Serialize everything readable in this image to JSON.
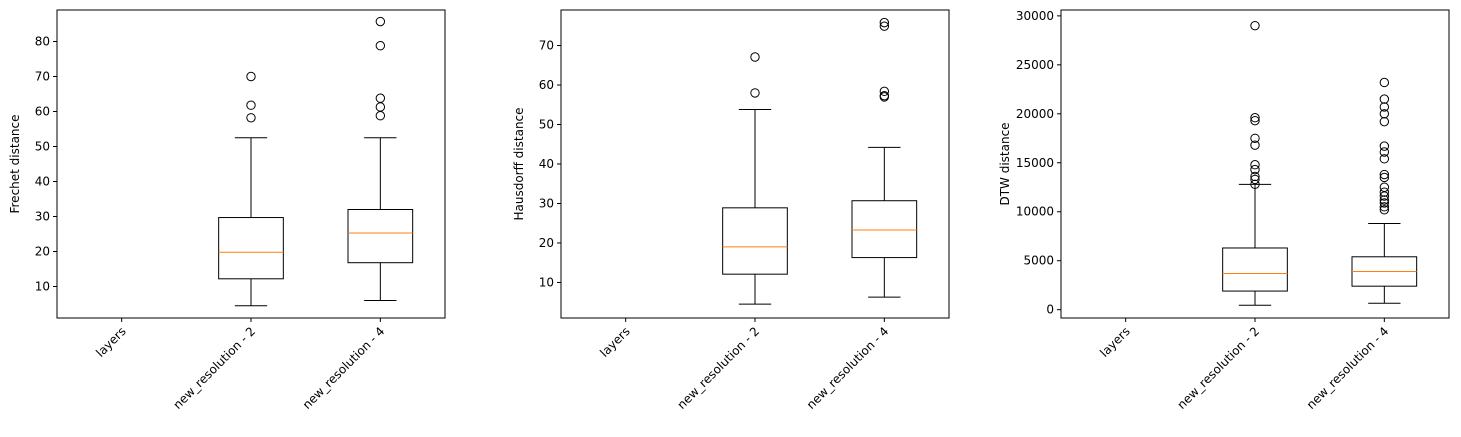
{
  "colors": {
    "box": "#000000",
    "median": "#ff7f0e",
    "outlier": "#000000",
    "background": "#ffffff"
  },
  "chart_data": [
    {
      "type": "boxplot",
      "ylabel": "Frechet distance",
      "categories": [
        "layers",
        "new_resolution - 2",
        "new_resolution - 4"
      ],
      "ylim": [
        1,
        89
      ],
      "yticks": [
        10,
        20,
        30,
        40,
        50,
        60,
        70,
        80
      ],
      "boxes": [
        null,
        {
          "whislo": 4.5,
          "q1": 12.2,
          "med": 19.8,
          "q3": 29.7,
          "whishi": 52.5,
          "fliers": [
            58.2,
            61.8,
            70.0
          ]
        },
        {
          "whislo": 6.0,
          "q1": 16.8,
          "med": 25.3,
          "q3": 32.0,
          "whishi": 52.5,
          "fliers": [
            58.8,
            61.3,
            63.8,
            78.8,
            85.7
          ]
        }
      ]
    },
    {
      "type": "boxplot",
      "ylabel": "Hausdorff distance",
      "categories": [
        "layers",
        "new_resolution - 2",
        "new_resolution - 4"
      ],
      "ylim": [
        1,
        79
      ],
      "yticks": [
        10,
        20,
        30,
        40,
        50,
        60,
        70
      ],
      "boxes": [
        null,
        {
          "whislo": 4.5,
          "q1": 12.1,
          "med": 19.0,
          "q3": 28.9,
          "whishi": 53.8,
          "fliers": [
            58.0,
            67.1
          ]
        },
        {
          "whislo": 6.3,
          "q1": 16.3,
          "med": 23.3,
          "q3": 30.7,
          "whishi": 44.2,
          "fliers": [
            57.0,
            57.3,
            58.4,
            74.9,
            75.8
          ]
        }
      ]
    },
    {
      "type": "boxplot",
      "ylabel": "DTW distance",
      "categories": [
        "layers",
        "new_resolution - 2",
        "new_resolution - 4"
      ],
      "ylim": [
        -850,
        30600
      ],
      "yticks": [
        0,
        5000,
        10000,
        15000,
        20000,
        25000,
        30000
      ],
      "boxes": [
        null,
        {
          "whislo": 450,
          "q1": 1900,
          "med": 3700,
          "q3": 6300,
          "whishi": 12800,
          "fliers": [
            12800,
            13300,
            13600,
            14300,
            14800,
            16800,
            17500,
            19300,
            19600,
            29000
          ]
        },
        {
          "whislo": 650,
          "q1": 2400,
          "med": 3900,
          "q3": 5400,
          "whishi": 8800,
          "fliers": [
            10200,
            10500,
            10900,
            11200,
            11600,
            12000,
            12500,
            13500,
            13800,
            15400,
            16100,
            16700,
            19200,
            20000,
            20700,
            21500,
            23200
          ]
        }
      ]
    }
  ]
}
